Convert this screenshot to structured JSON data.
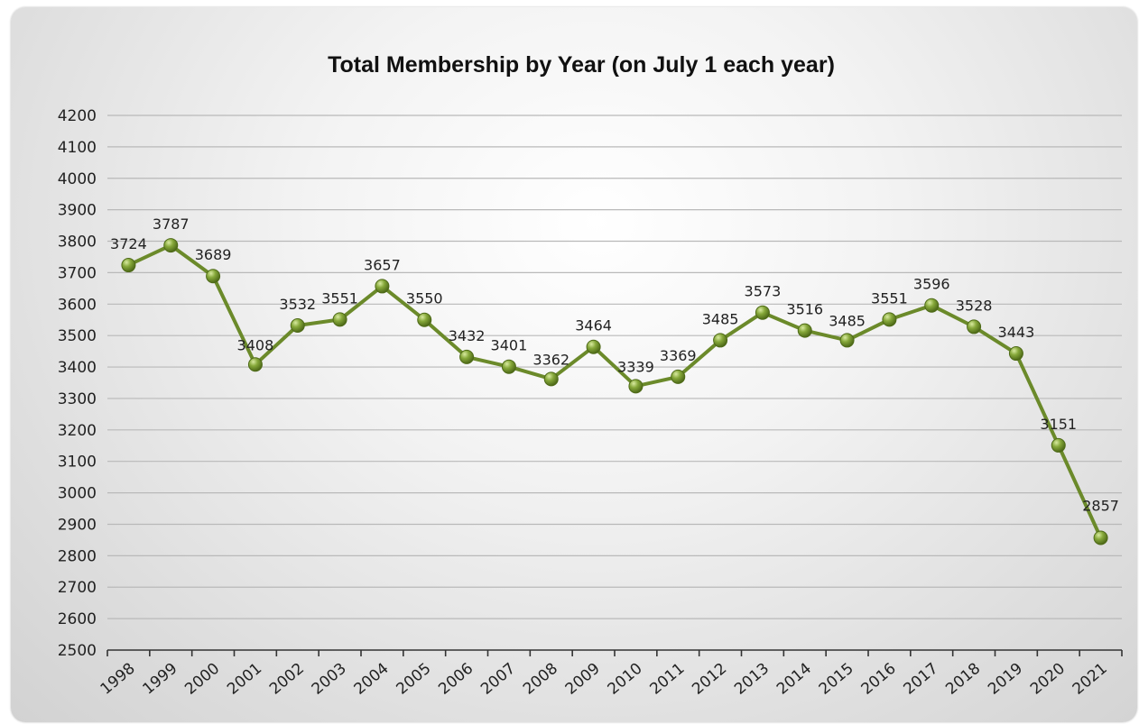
{
  "chart_data": {
    "type": "line",
    "title": "Total Membership by Year (on July 1 each year)",
    "xlabel": "",
    "ylabel": "",
    "ylim": [
      2500,
      4200
    ],
    "ytick_step": 100,
    "grid": true,
    "categories": [
      "1998",
      "1999",
      "2000",
      "2001",
      "2002",
      "2003",
      "2004",
      "2005",
      "2006",
      "2007",
      "2008",
      "2009",
      "2010",
      "2011",
      "2012",
      "2013",
      "2014",
      "2015",
      "2016",
      "2017",
      "2018",
      "2019",
      "2020",
      "2021"
    ],
    "series": [
      {
        "values": [
          3724,
          3787,
          3689,
          3408,
          3532,
          3551,
          3657,
          3550,
          3432,
          3401,
          3362,
          3464,
          3339,
          3369,
          3485,
          3573,
          3516,
          3485,
          3551,
          3596,
          3528,
          3443,
          3151,
          2857
        ],
        "color": "#6b8a2a",
        "marker_color": "#7a9a32",
        "show_data_labels": true
      }
    ]
  }
}
